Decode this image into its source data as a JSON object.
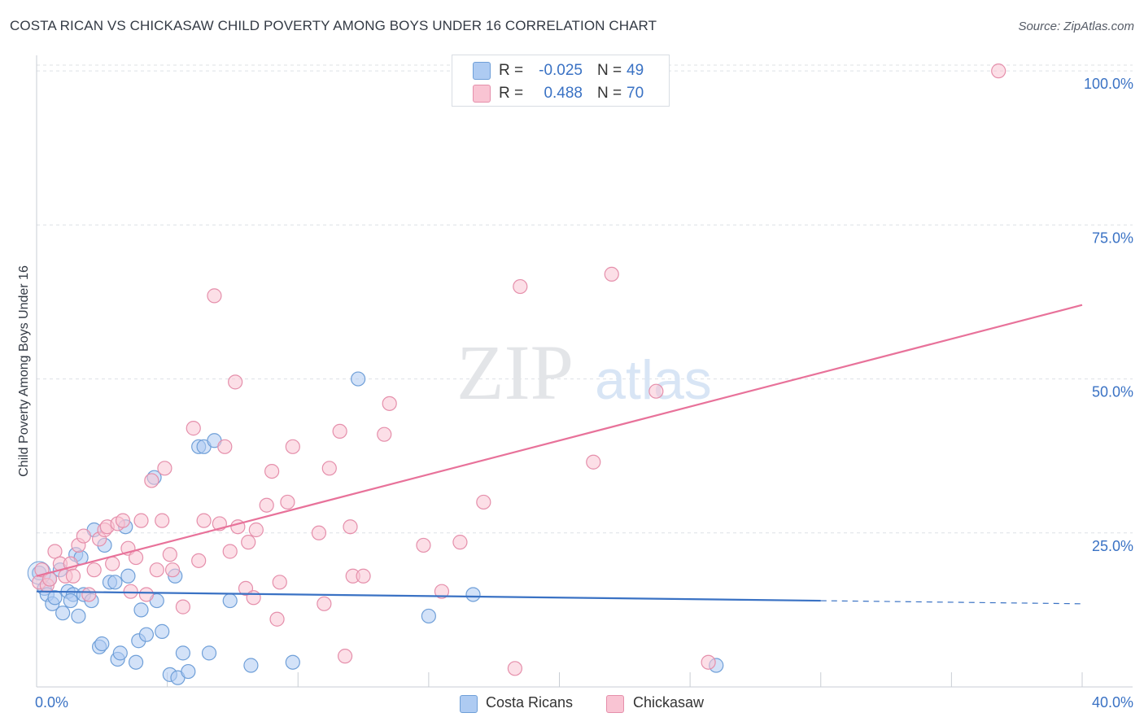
{
  "header": {
    "title": "COSTA RICAN VS CHICKASAW CHILD POVERTY AMONG BOYS UNDER 16 CORRELATION CHART",
    "source": "Source: ZipAtlas.com"
  },
  "watermark": {
    "zip": "ZIP",
    "atlas": "atlas"
  },
  "legend": {
    "r_label": "R =",
    "n_label": "N =",
    "rows": [
      {
        "r_value": "-0.025",
        "n_value": "49",
        "color": "#aecbf2",
        "border": "#6f9fd8"
      },
      {
        "r_value": "0.488",
        "n_value": "70",
        "color": "#f9c4d3",
        "border": "#e58fab"
      }
    ]
  },
  "bottom_legend": [
    {
      "label": "Costa Ricans",
      "color": "#aecbf2",
      "border": "#6f9fd8"
    },
    {
      "label": "Chickasaw",
      "color": "#f9c4d3",
      "border": "#e58fab"
    }
  ],
  "colors": {
    "blue": "#3a72c4",
    "pink": "#e8729a",
    "grid": "#dde1e6",
    "tick_label": "#3a72c4"
  },
  "chart_data": {
    "type": "scatter",
    "title": "COSTA RICAN VS CHICKASAW CHILD POVERTY AMONG BOYS UNDER 16 CORRELATION CHART",
    "xlabel": "",
    "ylabel": "Child Poverty Among Boys Under 16",
    "xlim": [
      0,
      40
    ],
    "ylim": [
      0,
      102
    ],
    "x_tick_labels": [
      {
        "value": 0,
        "label": "0.0%"
      },
      {
        "value": 40,
        "label": "40.0%"
      }
    ],
    "y_tick_labels": [
      {
        "value": 25,
        "label": "25.0%"
      },
      {
        "value": 50,
        "label": "50.0%"
      },
      {
        "value": 75,
        "label": "75.0%"
      },
      {
        "value": 100,
        "label": "100.0%"
      }
    ],
    "grid": true,
    "series": [
      {
        "name": "Costa Ricans",
        "color": "#aecbf2",
        "stroke": "#6f9fd8",
        "points": [
          [
            0.1,
            18.5
          ],
          [
            0.3,
            16.0
          ],
          [
            0.4,
            15.0
          ],
          [
            0.6,
            13.5
          ],
          [
            0.7,
            14.5
          ],
          [
            0.9,
            19.0
          ],
          [
            1.0,
            12.0
          ],
          [
            1.2,
            15.5
          ],
          [
            1.4,
            15.0
          ],
          [
            1.5,
            21.5
          ],
          [
            1.6,
            11.5
          ],
          [
            1.7,
            21.0
          ],
          [
            1.8,
            15.0
          ],
          [
            2.1,
            14.0
          ],
          [
            2.2,
            25.5
          ],
          [
            2.4,
            6.5
          ],
          [
            2.5,
            7.0
          ],
          [
            2.6,
            23.0
          ],
          [
            2.8,
            17.0
          ],
          [
            3.0,
            17.0
          ],
          [
            3.1,
            4.5
          ],
          [
            3.2,
            5.5
          ],
          [
            3.4,
            26.0
          ],
          [
            3.5,
            18.0
          ],
          [
            3.8,
            4.0
          ],
          [
            3.9,
            7.5
          ],
          [
            4.0,
            12.5
          ],
          [
            4.2,
            8.5
          ],
          [
            4.5,
            34.0
          ],
          [
            4.6,
            14.0
          ],
          [
            4.8,
            9.0
          ],
          [
            5.1,
            2.0
          ],
          [
            5.3,
            18.0
          ],
          [
            5.4,
            1.5
          ],
          [
            5.6,
            5.5
          ],
          [
            5.8,
            2.5
          ],
          [
            6.2,
            39.0
          ],
          [
            6.4,
            39.0
          ],
          [
            6.6,
            5.5
          ],
          [
            6.8,
            40.0
          ],
          [
            7.4,
            14.0
          ],
          [
            8.2,
            3.5
          ],
          [
            9.8,
            4.0
          ],
          [
            12.3,
            50.0
          ],
          [
            15.0,
            11.5
          ],
          [
            16.7,
            15.0
          ],
          [
            26.0,
            3.5
          ],
          [
            0.5,
            17.5
          ],
          [
            1.3,
            14.0
          ]
        ]
      },
      {
        "name": "Chickasaw",
        "color": "#f9c4d3",
        "stroke": "#e58fab",
        "points": [
          [
            0.1,
            17.0
          ],
          [
            0.2,
            19.0
          ],
          [
            0.4,
            16.5
          ],
          [
            0.5,
            17.5
          ],
          [
            0.7,
            22.0
          ],
          [
            0.9,
            20.0
          ],
          [
            1.1,
            18.0
          ],
          [
            1.3,
            20.0
          ],
          [
            1.4,
            18.0
          ],
          [
            1.6,
            23.0
          ],
          [
            1.8,
            24.5
          ],
          [
            2.0,
            15.0
          ],
          [
            2.2,
            19.0
          ],
          [
            2.4,
            24.0
          ],
          [
            2.6,
            25.5
          ],
          [
            2.7,
            26.0
          ],
          [
            2.9,
            20.0
          ],
          [
            3.1,
            26.5
          ],
          [
            3.3,
            27.0
          ],
          [
            3.5,
            22.5
          ],
          [
            3.6,
            15.5
          ],
          [
            3.8,
            21.0
          ],
          [
            4.0,
            27.0
          ],
          [
            4.2,
            15.0
          ],
          [
            4.4,
            33.5
          ],
          [
            4.6,
            19.0
          ],
          [
            4.8,
            27.0
          ],
          [
            4.9,
            35.5
          ],
          [
            5.1,
            21.5
          ],
          [
            5.2,
            19.0
          ],
          [
            5.6,
            13.0
          ],
          [
            6.0,
            42.0
          ],
          [
            6.2,
            20.5
          ],
          [
            6.4,
            27.0
          ],
          [
            6.8,
            63.5
          ],
          [
            7.0,
            26.5
          ],
          [
            7.2,
            39.0
          ],
          [
            7.4,
            22.0
          ],
          [
            7.6,
            49.5
          ],
          [
            7.7,
            26.0
          ],
          [
            8.0,
            16.0
          ],
          [
            8.1,
            23.5
          ],
          [
            8.3,
            14.5
          ],
          [
            8.4,
            25.5
          ],
          [
            8.8,
            29.5
          ],
          [
            9.0,
            35.0
          ],
          [
            9.2,
            11.0
          ],
          [
            9.3,
            17.0
          ],
          [
            9.6,
            30.0
          ],
          [
            9.8,
            39.0
          ],
          [
            10.8,
            25.0
          ],
          [
            11.0,
            13.5
          ],
          [
            11.2,
            35.5
          ],
          [
            11.6,
            41.5
          ],
          [
            11.8,
            5.0
          ],
          [
            12.0,
            26.0
          ],
          [
            12.1,
            18.0
          ],
          [
            12.5,
            18.0
          ],
          [
            13.3,
            41.0
          ],
          [
            13.5,
            46.0
          ],
          [
            14.8,
            23.0
          ],
          [
            15.5,
            15.5
          ],
          [
            16.2,
            23.5
          ],
          [
            17.1,
            30.0
          ],
          [
            18.3,
            3.0
          ],
          [
            18.5,
            65.0
          ],
          [
            21.3,
            36.5
          ],
          [
            22.0,
            67.0
          ],
          [
            23.7,
            48.0
          ],
          [
            25.7,
            4.0
          ]
        ]
      }
    ],
    "extra_points": [
      {
        "series": "Chickasaw",
        "x": 36.8,
        "y": 100.0
      }
    ],
    "trendlines": [
      {
        "series": "Costa Ricans",
        "x": [
          0,
          30
        ],
        "y": [
          15.5,
          14.0
        ],
        "dashed_extension_to": 40,
        "dashed_y": 13.5
      },
      {
        "series": "Chickasaw",
        "x": [
          0,
          40
        ],
        "y": [
          18.0,
          62.0
        ]
      }
    ]
  }
}
